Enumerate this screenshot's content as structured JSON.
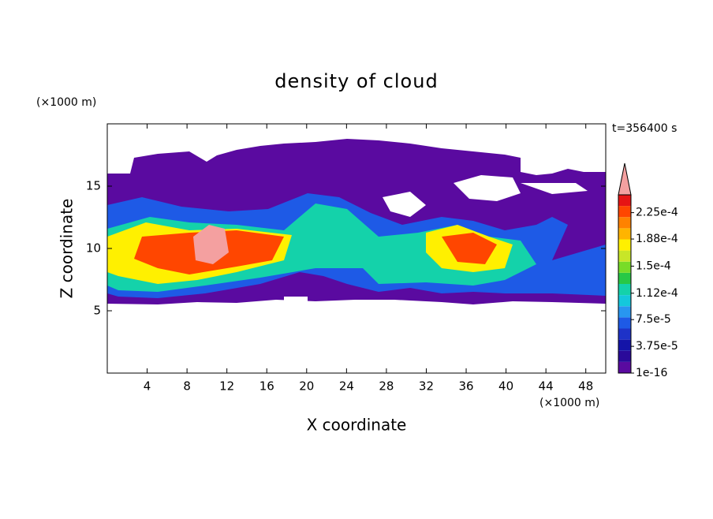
{
  "chart_data": {
    "type": "contour",
    "title": "density of cloud",
    "x_label": "X coordinate",
    "y_label": "Z coordinate",
    "x_unit": "(×1000 m)",
    "y_unit": "(×1000 m)",
    "annotation": "t=356400 s",
    "xlim": [
      0,
      50
    ],
    "xticks": [
      4,
      8,
      12,
      16,
      20,
      24,
      28,
      32,
      36,
      40,
      44,
      48
    ],
    "ylim": [
      0,
      20
    ],
    "yticks": [
      5,
      10,
      15
    ],
    "colorbar": {
      "lim": [
        0,
        0.00025
      ],
      "colors": [
        "#5a0aa0",
        "#2a0a9a",
        "#1414a8",
        "#1e32c8",
        "#1e5ae6",
        "#2896f0",
        "#14c8dc",
        "#14d2aa",
        "#28c846",
        "#78dc28",
        "#c8e628",
        "#fff000",
        "#ffb400",
        "#ff8200",
        "#ff4600",
        "#e61414"
      ],
      "over_color": "#f4a0a0",
      "ticks": [
        {
          "value": 1e-16,
          "label": "1e-16"
        },
        {
          "value": 3.75e-05,
          "label": "3.75e-5"
        },
        {
          "value": 7.5e-05,
          "label": "7.5e-5"
        },
        {
          "value": 0.000112,
          "label": "1.12e-4"
        },
        {
          "value": 0.00015,
          "label": "1.5e-4"
        },
        {
          "value": 0.000188,
          "label": "1.88e-4"
        },
        {
          "value": 0.000225,
          "label": "2.25e-4"
        }
      ]
    }
  }
}
